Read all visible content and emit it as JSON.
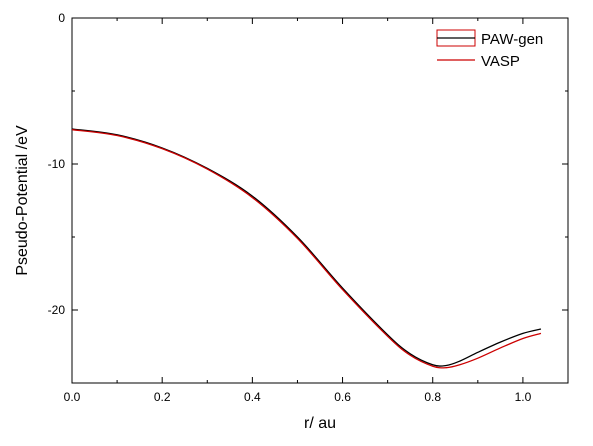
{
  "chart_data": {
    "type": "line",
    "title": "",
    "xlabel": "r/ au",
    "ylabel": "Pseudo-Potential /eV",
    "xlim": [
      0.0,
      1.1
    ],
    "ylim": [
      -25,
      0
    ],
    "xticks": [
      0.0,
      0.2,
      0.4,
      0.6,
      0.8,
      1.0
    ],
    "xtick_labels": [
      "0.0",
      "0.2",
      "0.4",
      "0.6",
      "0.8",
      "1.0"
    ],
    "yticks": [
      0,
      -10,
      -20
    ],
    "ytick_labels": [
      "0",
      "-10",
      "-20"
    ],
    "grid": false,
    "legend_position": "top-right",
    "series": [
      {
        "name": "PAW-gen",
        "color": "#000000",
        "x": [
          0.0,
          0.1,
          0.2,
          0.3,
          0.4,
          0.5,
          0.6,
          0.7,
          0.75,
          0.8,
          0.83,
          0.86,
          0.9,
          0.95,
          1.0,
          1.04
        ],
        "y": [
          -7.6,
          -8.0,
          -8.9,
          -10.3,
          -12.2,
          -15.0,
          -18.5,
          -21.7,
          -23.0,
          -23.75,
          -23.8,
          -23.5,
          -22.9,
          -22.2,
          -21.6,
          -21.3
        ]
      },
      {
        "name": "VASP",
        "color": "#cc0000",
        "x": [
          0.0,
          0.1,
          0.2,
          0.3,
          0.4,
          0.5,
          0.6,
          0.7,
          0.75,
          0.8,
          0.83,
          0.86,
          0.9,
          0.95,
          1.0,
          1.04
        ],
        "y": [
          -7.65,
          -8.05,
          -8.95,
          -10.35,
          -12.3,
          -15.1,
          -18.6,
          -21.8,
          -23.1,
          -23.85,
          -23.95,
          -23.75,
          -23.3,
          -22.6,
          -21.95,
          -21.6
        ]
      }
    ]
  }
}
